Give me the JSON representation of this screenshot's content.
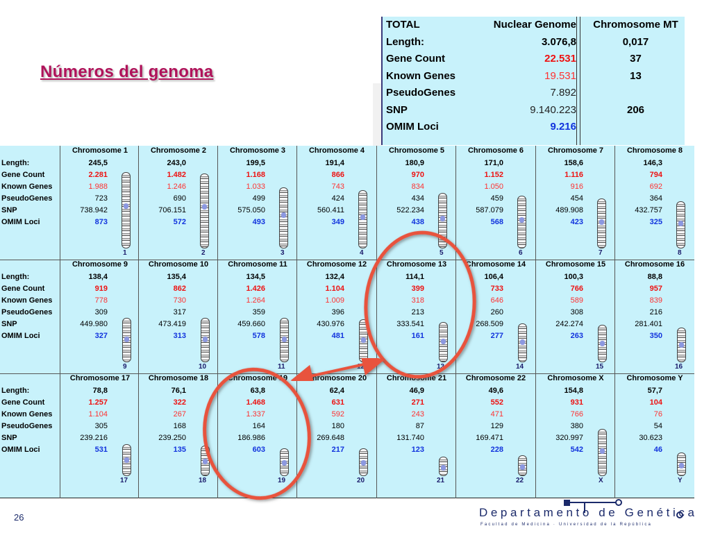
{
  "slide": {
    "title": "Números del genoma",
    "page_number": "26"
  },
  "summary": {
    "rows": [
      {
        "c0": "TOTAL",
        "c1": "Nuclear Genome",
        "c2": "Chromosome MT",
        "c1_color": "#000000",
        "c1_weight": "bold"
      },
      {
        "c0": "Length:",
        "c1": "3.076,8",
        "c2": "0,017",
        "c1_color": "#000000",
        "c1_weight": "bold"
      },
      {
        "c0": "Gene Count",
        "c1": "22.531",
        "c2": "37",
        "c1_color": "#ee1111",
        "c1_weight": "bold"
      },
      {
        "c0": "Known Genes",
        "c1": "19.531",
        "c2": "13",
        "c1_color": "#ff3030",
        "c1_weight": "normal"
      },
      {
        "c0": "PseudoGenes",
        "c1": "7.892",
        "c2": "",
        "c1_color": "#222222",
        "c1_weight": "normal"
      },
      {
        "c0": "SNP",
        "c1": "9.140.223",
        "c2": "206",
        "c1_color": "#222222",
        "c1_weight": "normal"
      },
      {
        "c0": "OMIM Loci",
        "c1": "9.216",
        "c2": "",
        "c1_color": "#1133dd",
        "c1_weight": "bold"
      }
    ]
  },
  "row_labels": [
    "Length:",
    "Gene Count",
    "Known Genes",
    "PseudoGenes",
    "SNP",
    "OMIM Loci"
  ],
  "chromosomes": [
    {
      "name": "Chromosome 1",
      "length": "245,5",
      "gene_count": "2.281",
      "known_genes": "1.988",
      "pseudogenes": "723",
      "snp": "738.942",
      "omim": "873",
      "number": "1"
    },
    {
      "name": "Chromosome 2",
      "length": "243,0",
      "gene_count": "1.482",
      "known_genes": "1.246",
      "pseudogenes": "690",
      "snp": "706.151",
      "omim": "572",
      "number": "2"
    },
    {
      "name": "Chromosome 3",
      "length": "199,5",
      "gene_count": "1.168",
      "known_genes": "1.033",
      "pseudogenes": "499",
      "snp": "575.050",
      "omim": "493",
      "number": "3"
    },
    {
      "name": "Chromosome 4",
      "length": "191,4",
      "gene_count": "866",
      "known_genes": "743",
      "pseudogenes": "424",
      "snp": "560.411",
      "omim": "349",
      "number": "4"
    },
    {
      "name": "Chromosome 5",
      "length": "180,9",
      "gene_count": "970",
      "known_genes": "834",
      "pseudogenes": "434",
      "snp": "522.234",
      "omim": "438",
      "number": "5"
    },
    {
      "name": "Chromosome 6",
      "length": "171,0",
      "gene_count": "1.152",
      "known_genes": "1.050",
      "pseudogenes": "459",
      "snp": "587.079",
      "omim": "568",
      "number": "6"
    },
    {
      "name": "Chromosome 7",
      "length": "158,6",
      "gene_count": "1.116",
      "known_genes": "916",
      "pseudogenes": "454",
      "snp": "489.908",
      "omim": "423",
      "number": "7"
    },
    {
      "name": "Chromosome 8",
      "length": "146,3",
      "gene_count": "794",
      "known_genes": "692",
      "pseudogenes": "364",
      "snp": "432.757",
      "omim": "325",
      "number": "8"
    },
    {
      "name": "Chromosome 9",
      "length": "138,4",
      "gene_count": "919",
      "known_genes": "778",
      "pseudogenes": "309",
      "snp": "449.980",
      "omim": "327",
      "number": "9"
    },
    {
      "name": "Chromosome 10",
      "length": "135,4",
      "gene_count": "862",
      "known_genes": "730",
      "pseudogenes": "317",
      "snp": "473.419",
      "omim": "313",
      "number": "10"
    },
    {
      "name": "Chromosome 11",
      "length": "134,5",
      "gene_count": "1.426",
      "known_genes": "1.264",
      "pseudogenes": "359",
      "snp": "459.660",
      "omim": "578",
      "number": "11"
    },
    {
      "name": "Chromosome 12",
      "length": "132,4",
      "gene_count": "1.104",
      "known_genes": "1.009",
      "pseudogenes": "396",
      "snp": "430.976",
      "omim": "481",
      "number": "12"
    },
    {
      "name": "Chromosome 13",
      "length": "114,1",
      "gene_count": "399",
      "known_genes": "318",
      "pseudogenes": "213",
      "snp": "333.541",
      "omim": "161",
      "number": "13"
    },
    {
      "name": "Chromosome 14",
      "length": "106,4",
      "gene_count": "733",
      "known_genes": "646",
      "pseudogenes": "260",
      "snp": "268.509",
      "omim": "277",
      "number": "14"
    },
    {
      "name": "Chromosome 15",
      "length": "100,3",
      "gene_count": "766",
      "known_genes": "589",
      "pseudogenes": "308",
      "snp": "242.274",
      "omim": "263",
      "number": "15"
    },
    {
      "name": "Chromosome 16",
      "length": "88,8",
      "gene_count": "957",
      "known_genes": "839",
      "pseudogenes": "216",
      "snp": "281.401",
      "omim": "350",
      "number": "16"
    },
    {
      "name": "Chromosome 17",
      "length": "78,8",
      "gene_count": "1.257",
      "known_genes": "1.104",
      "pseudogenes": "305",
      "snp": "239.216",
      "omim": "531",
      "number": "17"
    },
    {
      "name": "Chromosome 18",
      "length": "76,1",
      "gene_count": "322",
      "known_genes": "267",
      "pseudogenes": "168",
      "snp": "239.250",
      "omim": "135",
      "number": "18"
    },
    {
      "name": "Chromosome 19",
      "length": "63,8",
      "gene_count": "1.468",
      "known_genes": "1.337",
      "pseudogenes": "164",
      "snp": "186.986",
      "omim": "603",
      "number": "19"
    },
    {
      "name": "Chromosome 20",
      "length": "62,4",
      "gene_count": "631",
      "known_genes": "592",
      "pseudogenes": "180",
      "snp": "269.648",
      "omim": "217",
      "number": "20"
    },
    {
      "name": "Chromosome 21",
      "length": "46,9",
      "gene_count": "271",
      "known_genes": "243",
      "pseudogenes": "87",
      "snp": "131.740",
      "omim": "123",
      "number": "21"
    },
    {
      "name": "Chromosome 22",
      "length": "49,6",
      "gene_count": "552",
      "known_genes": "471",
      "pseudogenes": "129",
      "snp": "169.471",
      "omim": "228",
      "number": "22"
    },
    {
      "name": "Chromosome X",
      "length": "154,8",
      "gene_count": "931",
      "known_genes": "766",
      "pseudogenes": "380",
      "snp": "320.997",
      "omim": "542",
      "number": "X"
    },
    {
      "name": "Chromosome Y",
      "length": "57,7",
      "gene_count": "104",
      "known_genes": "76",
      "pseudogenes": "54",
      "snp": "30.623",
      "omim": "46",
      "number": "Y"
    }
  ],
  "logo": {
    "name": "Departamento de Genética",
    "subtitle": "Facultad de Medicina · Universidad de la República"
  },
  "colors": {
    "title": "#b0125a",
    "table_bg": "#c8f2fb",
    "gene_count": "#ee1111",
    "known_genes": "#ff3030",
    "omim": "#1133dd",
    "highlight": "#e8523e"
  }
}
